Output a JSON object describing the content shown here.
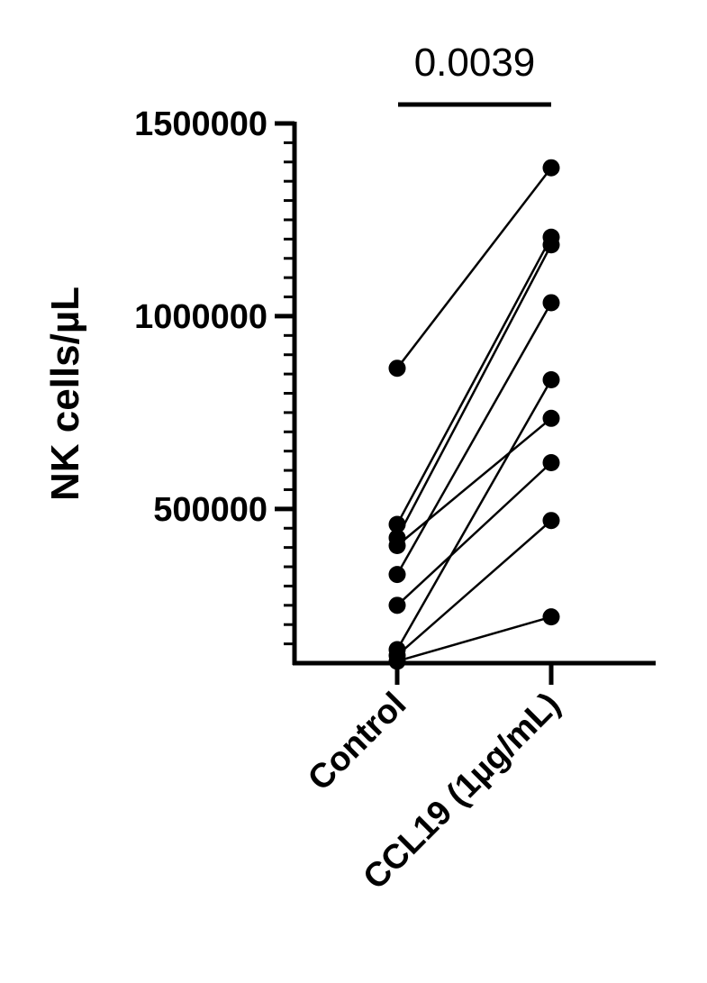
{
  "chart_data": {
    "type": "scatter",
    "title": "",
    "xlabel": "",
    "ylabel": "NK cells/µL",
    "categories": [
      "Control",
      "CCL19 (1µg/mL)"
    ],
    "ylim": [
      100000,
      1500000
    ],
    "yticks": [
      "1500000",
      "1000000",
      "500000"
    ],
    "grid": false,
    "legend": "none",
    "marker_color": "#000000",
    "pairs": [
      [
        865000,
        1385000
      ],
      [
        460000,
        1205000
      ],
      [
        425000,
        1185000
      ],
      [
        405000,
        735000
      ],
      [
        330000,
        1035000
      ],
      [
        250000,
        620000
      ],
      [
        135000,
        835000
      ],
      [
        120000,
        470000
      ],
      [
        105000,
        220000
      ]
    ],
    "annotations": [
      {
        "text": "0.0039",
        "between": [
          "Control",
          "CCL19 (1µg/mL)"
        ]
      }
    ]
  }
}
